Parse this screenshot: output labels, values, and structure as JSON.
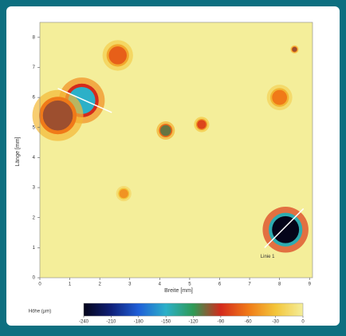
{
  "chart_data": {
    "type": "heatmap",
    "x_label": "Breite [mm]",
    "y_label": "Länge [mm]",
    "xlim": [
      0,
      9.1
    ],
    "ylim": [
      0,
      8.5
    ],
    "xticks": [
      0,
      1,
      2,
      3,
      4,
      5,
      6,
      7,
      8,
      9
    ],
    "yticks": [
      0,
      1,
      2,
      3,
      4,
      5,
      6,
      7,
      8
    ],
    "features": [
      {
        "x": 1.4,
        "y": 5.9,
        "r": 0.45,
        "value": -150
      },
      {
        "x": 0.6,
        "y": 5.4,
        "r": 0.5,
        "value": -100
      },
      {
        "x": 8.2,
        "y": 1.6,
        "r": 0.45,
        "value": -240
      },
      {
        "x": 2.6,
        "y": 7.4,
        "r": 0.3,
        "value": -70
      },
      {
        "x": 4.2,
        "y": 4.9,
        "r": 0.18,
        "value": -110
      },
      {
        "x": 5.4,
        "y": 5.1,
        "r": 0.15,
        "value": -80
      },
      {
        "x": 8.0,
        "y": 6.0,
        "r": 0.25,
        "value": -60
      },
      {
        "x": 2.8,
        "y": 2.8,
        "r": 0.15,
        "value": -50
      },
      {
        "x": 8.5,
        "y": 7.6,
        "r": 0.08,
        "value": -100
      }
    ],
    "lines": [
      {
        "x": [
          0.6,
          2.4
        ],
        "y": [
          6.3,
          5.5
        ]
      },
      {
        "x": [
          7.5,
          8.8
        ],
        "y": [
          1.0,
          2.3
        ]
      }
    ],
    "annotation": {
      "text": "Linie 1",
      "x": 7.6,
      "y": 0.7
    },
    "colorbar": {
      "label": "Höhe (µm)",
      "lim": [
        -240,
        0
      ],
      "ticks": [
        -240,
        -210,
        -180,
        -150,
        -120,
        -90,
        -60,
        -30,
        0
      ],
      "colors": [
        "#05051a",
        "#0f1f78",
        "#1f5fd8",
        "#2cb0c8",
        "#2f9a55",
        "#d42a1c",
        "#f07a18",
        "#f3c53a",
        "#f4ee9a"
      ]
    }
  }
}
